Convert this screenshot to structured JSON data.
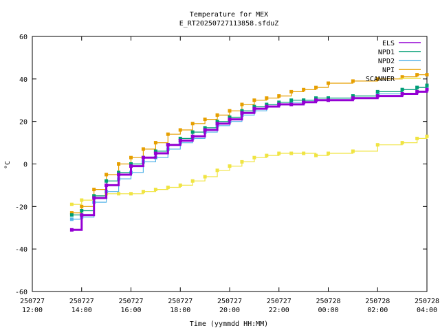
{
  "chart_data": {
    "type": "line",
    "title": "Temperature for MEX",
    "subtitle": "E_RT20250727113858.sfduZ",
    "xlabel": "Time (yymmdd HH:MM)",
    "ylabel": "°C",
    "ylim": [
      -60,
      60
    ],
    "y_ticks": [
      -60,
      -40,
      -20,
      0,
      20,
      40,
      60
    ],
    "xlim_hours": [
      12,
      28
    ],
    "x_ticks": [
      {
        "hour": 12,
        "date": "250727",
        "time": "12:00"
      },
      {
        "hour": 14,
        "date": "250727",
        "time": "14:00"
      },
      {
        "hour": 16,
        "date": "250727",
        "time": "16:00"
      },
      {
        "hour": 18,
        "date": "250727",
        "time": "18:00"
      },
      {
        "hour": 20,
        "date": "250727",
        "time": "20:00"
      },
      {
        "hour": 22,
        "date": "250727",
        "time": "22:00"
      },
      {
        "hour": 24,
        "date": "250728",
        "time": "00:00"
      },
      {
        "hour": 26,
        "date": "250728",
        "time": "02:00"
      },
      {
        "hour": 28,
        "date": "250728",
        "time": "04:00"
      }
    ],
    "grid": false,
    "legend_position": "top-right",
    "series": [
      {
        "name": "ELS",
        "color": "#9400d3",
        "points": [
          [
            13.6,
            -31
          ],
          [
            14,
            -24
          ],
          [
            14.5,
            -16
          ],
          [
            15,
            -10
          ],
          [
            15.5,
            -5
          ],
          [
            16,
            -1
          ],
          [
            16.5,
            3
          ],
          [
            17,
            5
          ],
          [
            17.5,
            9
          ],
          [
            18,
            11
          ],
          [
            18.5,
            13
          ],
          [
            19,
            16
          ],
          [
            19.5,
            19
          ],
          [
            20,
            21
          ],
          [
            20.5,
            24
          ],
          [
            21,
            26
          ],
          [
            21.5,
            27
          ],
          [
            22,
            28
          ],
          [
            22.5,
            28
          ],
          [
            23,
            29
          ],
          [
            23.5,
            30
          ],
          [
            24,
            30
          ],
          [
            25,
            31
          ],
          [
            26,
            32
          ],
          [
            27,
            33
          ],
          [
            27.6,
            34
          ],
          [
            28,
            35
          ]
        ]
      },
      {
        "name": "NPD1",
        "color": "#009e73",
        "points": [
          [
            13.6,
            -24
          ],
          [
            14,
            -22
          ],
          [
            14.5,
            -15
          ],
          [
            15,
            -8
          ],
          [
            15.5,
            -4
          ],
          [
            16,
            0
          ],
          [
            16.5,
            3
          ],
          [
            17,
            6
          ],
          [
            17.5,
            9
          ],
          [
            18,
            12
          ],
          [
            18.5,
            15
          ],
          [
            19,
            17
          ],
          [
            19.5,
            20
          ],
          [
            20,
            22
          ],
          [
            20.5,
            25
          ],
          [
            21,
            27
          ],
          [
            21.5,
            28
          ],
          [
            22,
            29
          ],
          [
            22.5,
            30
          ],
          [
            23,
            30
          ],
          [
            23.5,
            31
          ],
          [
            24,
            31
          ],
          [
            25,
            32
          ],
          [
            26,
            34
          ],
          [
            27,
            35
          ],
          [
            27.6,
            36
          ],
          [
            28,
            37
          ]
        ]
      },
      {
        "name": "NPD2",
        "color": "#56b4e9",
        "points": [
          [
            13.6,
            -26
          ],
          [
            14,
            -25
          ],
          [
            14.5,
            -18
          ],
          [
            15,
            -13
          ],
          [
            15.5,
            -7
          ],
          [
            16,
            -4
          ],
          [
            16.5,
            1
          ],
          [
            17,
            3
          ],
          [
            17.5,
            7
          ],
          [
            18,
            10
          ],
          [
            18.5,
            12
          ],
          [
            19,
            15
          ],
          [
            19.5,
            18
          ],
          [
            20,
            20
          ],
          [
            20.5,
            23
          ],
          [
            21,
            25
          ],
          [
            21.5,
            27
          ],
          [
            22,
            28
          ],
          [
            22.5,
            29
          ],
          [
            23,
            30
          ],
          [
            23.5,
            30
          ],
          [
            24,
            31
          ],
          [
            25,
            31
          ],
          [
            26,
            33
          ],
          [
            27,
            35
          ],
          [
            27.6,
            36
          ],
          [
            28,
            36
          ]
        ]
      },
      {
        "name": "NPI",
        "color": "#e69f00",
        "points": [
          [
            13.6,
            -23
          ],
          [
            14,
            -20
          ],
          [
            14.5,
            -12
          ],
          [
            15,
            -5
          ],
          [
            15.5,
            0
          ],
          [
            16,
            3
          ],
          [
            16.5,
            7
          ],
          [
            17,
            10
          ],
          [
            17.5,
            14
          ],
          [
            18,
            16
          ],
          [
            18.5,
            19
          ],
          [
            19,
            21
          ],
          [
            19.5,
            23
          ],
          [
            20,
            25
          ],
          [
            20.5,
            28
          ],
          [
            21,
            30
          ],
          [
            21.5,
            31
          ],
          [
            22,
            32
          ],
          [
            22.5,
            34
          ],
          [
            23,
            35
          ],
          [
            23.5,
            36
          ],
          [
            24,
            38
          ],
          [
            25,
            39
          ],
          [
            26,
            40
          ],
          [
            27,
            41
          ],
          [
            27.6,
            42
          ],
          [
            28,
            42
          ]
        ]
      },
      {
        "name": "SCANNER",
        "color": "#f0e442",
        "points": [
          [
            13.6,
            -19
          ],
          [
            14,
            -17
          ],
          [
            14.5,
            -15
          ],
          [
            15,
            -14
          ],
          [
            15.5,
            -14
          ],
          [
            16,
            -14
          ],
          [
            16.5,
            -13
          ],
          [
            17,
            -12
          ],
          [
            17.5,
            -11
          ],
          [
            18,
            -10
          ],
          [
            18.5,
            -8
          ],
          [
            19,
            -6
          ],
          [
            19.5,
            -3
          ],
          [
            20,
            -1
          ],
          [
            20.5,
            1
          ],
          [
            21,
            3
          ],
          [
            21.5,
            4
          ],
          [
            22,
            5
          ],
          [
            22.5,
            5
          ],
          [
            23,
            5
          ],
          [
            23.5,
            4
          ],
          [
            24,
            5
          ],
          [
            25,
            6
          ],
          [
            26,
            9
          ],
          [
            27,
            10
          ],
          [
            27.6,
            12
          ],
          [
            28,
            13
          ]
        ]
      }
    ]
  }
}
